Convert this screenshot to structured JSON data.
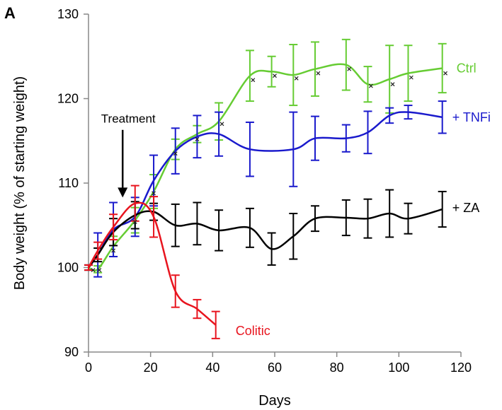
{
  "chart_data": {
    "type": "line",
    "panel_label": "A",
    "xlabel": "Days",
    "ylabel": "Body weight (% of starting weight)",
    "xlim": [
      0,
      120
    ],
    "ylim": [
      90,
      130
    ],
    "xticks": [
      0,
      20,
      40,
      60,
      80,
      100,
      120
    ],
    "yticks": [
      90,
      100,
      110,
      120,
      130
    ],
    "grid": false,
    "legend": "inline labels at line ends",
    "annotation": {
      "text": "Treatment",
      "x": 11,
      "y_tip": 108.3,
      "y_tail": 116.3
    },
    "series": [
      {
        "name": "Ctrl",
        "color": "#66CC33",
        "points": [
          {
            "x": 0,
            "y": 100,
            "err": 0.3
          },
          {
            "x": 3,
            "y": 99.8,
            "err": 0.4
          },
          {
            "x": 8,
            "y": 102.5,
            "err": 1.2
          },
          {
            "x": 15,
            "y": 105.6,
            "err": 1.5
          },
          {
            "x": 21,
            "y": 109.0,
            "err": 2.0
          },
          {
            "x": 28,
            "y": 114.0,
            "err": 1.2
          },
          {
            "x": 35,
            "y": 115.8,
            "err": 1.0
          },
          {
            "x": 42,
            "y": 117.3,
            "err": 2.2
          },
          {
            "x": 52,
            "y": 122.7,
            "err": 3.0
          },
          {
            "x": 59,
            "y": 123.2,
            "err": 1.8
          },
          {
            "x": 66,
            "y": 122.8,
            "err": 3.6
          },
          {
            "x": 73,
            "y": 123.5,
            "err": 3.2
          },
          {
            "x": 83,
            "y": 124.0,
            "err": 3.0
          },
          {
            "x": 90,
            "y": 121.7,
            "err": 2.1
          },
          {
            "x": 97,
            "y": 122.3,
            "err": 4.0
          },
          {
            "x": 103,
            "y": 123.0,
            "err": 3.3
          },
          {
            "x": 114,
            "y": 123.6,
            "err": 2.9
          }
        ]
      },
      {
        "name": "+ TNFi",
        "color": "#1A1ACC",
        "points": [
          {
            "x": 0,
            "y": 100,
            "err": 0.3
          },
          {
            "x": 3,
            "y": 101.5,
            "err": 2.6
          },
          {
            "x": 8,
            "y": 104.5,
            "err": 3.2
          },
          {
            "x": 15,
            "y": 106.0,
            "err": 2.3
          },
          {
            "x": 21,
            "y": 110.3,
            "err": 3.0
          },
          {
            "x": 28,
            "y": 113.8,
            "err": 2.7
          },
          {
            "x": 35,
            "y": 115.5,
            "err": 2.5
          },
          {
            "x": 42,
            "y": 115.8,
            "err": 2.6
          },
          {
            "x": 52,
            "y": 114.0,
            "err": 3.2
          },
          {
            "x": 66,
            "y": 114.0,
            "err": 4.4
          },
          {
            "x": 73,
            "y": 115.3,
            "err": 2.6
          },
          {
            "x": 83,
            "y": 115.3,
            "err": 1.6
          },
          {
            "x": 90,
            "y": 116.0,
            "err": 2.5
          },
          {
            "x": 97,
            "y": 118.0,
            "err": 0.9
          },
          {
            "x": 103,
            "y": 118.4,
            "err": 0.8
          },
          {
            "x": 114,
            "y": 117.8,
            "err": 1.9
          }
        ]
      },
      {
        "name": "+ ZA",
        "color": "#000000",
        "points": [
          {
            "x": 0,
            "y": 100,
            "err": 0.3
          },
          {
            "x": 3,
            "y": 101.5,
            "err": 0.8
          },
          {
            "x": 8,
            "y": 104.2,
            "err": 1.6
          },
          {
            "x": 15,
            "y": 106.2,
            "err": 1.6
          },
          {
            "x": 21,
            "y": 106.6,
            "err": 1.0
          },
          {
            "x": 28,
            "y": 105.0,
            "err": 2.5
          },
          {
            "x": 35,
            "y": 105.2,
            "err": 2.5
          },
          {
            "x": 42,
            "y": 104.4,
            "err": 2.4
          },
          {
            "x": 52,
            "y": 104.7,
            "err": 2.3
          },
          {
            "x": 59,
            "y": 102.2,
            "err": 1.9
          },
          {
            "x": 66,
            "y": 103.7,
            "err": 2.7
          },
          {
            "x": 73,
            "y": 105.8,
            "err": 1.5
          },
          {
            "x": 83,
            "y": 105.9,
            "err": 2.1
          },
          {
            "x": 90,
            "y": 105.8,
            "err": 2.3
          },
          {
            "x": 97,
            "y": 106.4,
            "err": 2.8
          },
          {
            "x": 103,
            "y": 105.8,
            "err": 1.8
          },
          {
            "x": 114,
            "y": 106.9,
            "err": 2.1
          }
        ]
      },
      {
        "name": "Colitic",
        "color": "#E8141E",
        "points": [
          {
            "x": 0,
            "y": 100,
            "err": 0.3
          },
          {
            "x": 3,
            "y": 102.0,
            "err": 1.0
          },
          {
            "x": 8,
            "y": 104.8,
            "err": 1.5
          },
          {
            "x": 15,
            "y": 107.6,
            "err": 2.1
          },
          {
            "x": 21,
            "y": 106.0,
            "err": 2.4
          },
          {
            "x": 28,
            "y": 97.2,
            "err": 1.9
          },
          {
            "x": 35,
            "y": 95.1,
            "err": 1.1
          },
          {
            "x": 41,
            "y": 93.2,
            "err": 1.6
          }
        ]
      }
    ],
    "markers": [
      {
        "x": 1.5,
        "y": 99.7
      },
      {
        "x": 3.5,
        "y": 99.7
      },
      {
        "x": 8,
        "y": 102.0
      },
      {
        "x": 15,
        "y": 105.4
      },
      {
        "x": 21,
        "y": 108.8
      },
      {
        "x": 28,
        "y": 113.5
      },
      {
        "x": 35,
        "y": 115.2
      },
      {
        "x": 43,
        "y": 117.0
      },
      {
        "x": 53,
        "y": 122.2
      },
      {
        "x": 60,
        "y": 122.7
      },
      {
        "x": 67,
        "y": 122.4
      },
      {
        "x": 74,
        "y": 123.0
      },
      {
        "x": 84,
        "y": 123.5
      },
      {
        "x": 91,
        "y": 121.5
      },
      {
        "x": 98,
        "y": 121.7
      },
      {
        "x": 104,
        "y": 122.5
      },
      {
        "x": 115,
        "y": 123.0
      }
    ]
  }
}
